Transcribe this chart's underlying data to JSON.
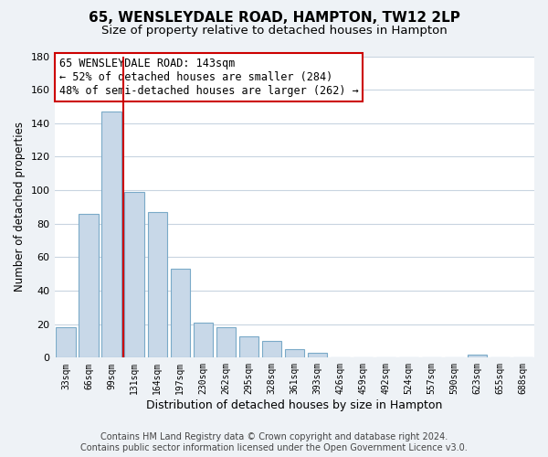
{
  "title": "65, WENSLEYDALE ROAD, HAMPTON, TW12 2LP",
  "subtitle": "Size of property relative to detached houses in Hampton",
  "xlabel": "Distribution of detached houses by size in Hampton",
  "ylabel": "Number of detached properties",
  "bin_labels": [
    "33sqm",
    "66sqm",
    "99sqm",
    "131sqm",
    "164sqm",
    "197sqm",
    "230sqm",
    "262sqm",
    "295sqm",
    "328sqm",
    "361sqm",
    "393sqm",
    "426sqm",
    "459sqm",
    "492sqm",
    "524sqm",
    "557sqm",
    "590sqm",
    "623sqm",
    "655sqm",
    "688sqm"
  ],
  "bar_heights": [
    18,
    86,
    147,
    99,
    87,
    53,
    21,
    18,
    13,
    10,
    5,
    3,
    0,
    0,
    0,
    0,
    0,
    0,
    2,
    0,
    0
  ],
  "bar_color": "#c8d8e8",
  "bar_edge_color": "#7aaac8",
  "marker_line_color": "#cc0000",
  "annotation_line1": "65 WENSLEYDALE ROAD: 143sqm",
  "annotation_line2": "← 52% of detached houses are smaller (284)",
  "annotation_line3": "48% of semi-detached houses are larger (262) →",
  "annotation_box_color": "#ffffff",
  "annotation_box_edge": "#cc0000",
  "ylim": [
    0,
    180
  ],
  "yticks": [
    0,
    20,
    40,
    60,
    80,
    100,
    120,
    140,
    160,
    180
  ],
  "footer_line1": "Contains HM Land Registry data © Crown copyright and database right 2024.",
  "footer_line2": "Contains public sector information licensed under the Open Government Licence v3.0.",
  "background_color": "#eef2f6",
  "plot_background_color": "#ffffff",
  "grid_color": "#c8d4e0",
  "title_fontsize": 11,
  "subtitle_fontsize": 9.5,
  "xlabel_fontsize": 9,
  "ylabel_fontsize": 8.5,
  "annotation_fontsize": 8.5,
  "footer_fontsize": 7
}
